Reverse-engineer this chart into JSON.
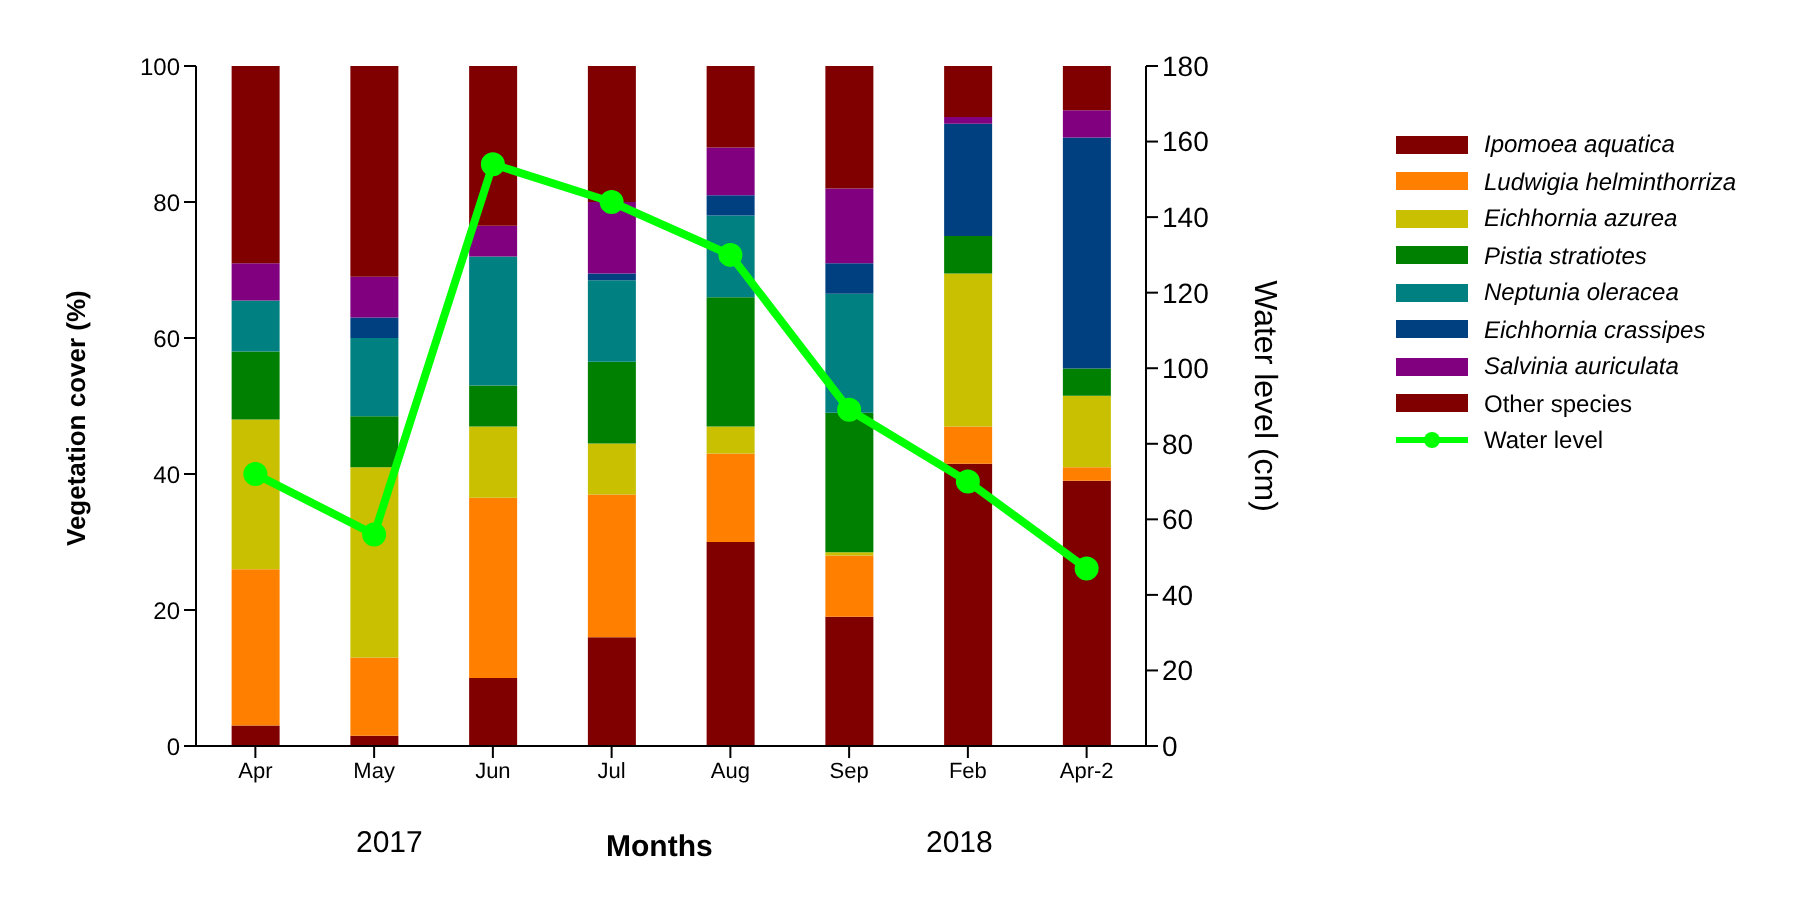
{
  "chart_data": {
    "type": "bar",
    "stacked": true,
    "xlabel": "Months",
    "ylabel": "Vegetation cover (%)",
    "y2label": "Water level (cm)",
    "categories": [
      "Apr",
      "May",
      "Jun",
      "Jul",
      "Aug",
      "Sep",
      "Feb",
      "Apr-2"
    ],
    "series": [
      {
        "name": "Ipomoea aquatica",
        "color": "#800000",
        "values": [
          3,
          1.5,
          10,
          16,
          30,
          19,
          41.5,
          39
        ]
      },
      {
        "name": "Ludwigia helminthorriza",
        "color": "#ff8000",
        "values": [
          23,
          11.5,
          26.5,
          21,
          13,
          9,
          5.5,
          2
        ]
      },
      {
        "name": "Eichhornia azurea",
        "color": "#c8c000",
        "values": [
          22,
          28,
          10.5,
          7.5,
          4,
          0.5,
          22.5,
          10.5
        ]
      },
      {
        "name": "Pistia stratiotes",
        "color": "#008000",
        "values": [
          10,
          7.5,
          6,
          12,
          19,
          20.5,
          5.5,
          4
        ]
      },
      {
        "name": "Neptunia oleracea",
        "color": "#008080",
        "values": [
          7.5,
          11.5,
          19,
          12,
          12,
          17.5,
          0,
          0
        ]
      },
      {
        "name": "Eichhornia crassipes",
        "color": "#004080",
        "values": [
          0,
          3,
          0,
          1,
          3,
          4.5,
          16.5,
          34
        ]
      },
      {
        "name": "Salvinia auriculata",
        "color": "#800080",
        "values": [
          5.5,
          6,
          4.5,
          10.5,
          7,
          11,
          1,
          4
        ]
      },
      {
        "name": "Other species",
        "color": "#800000",
        "values": [
          29,
          31,
          23.5,
          20,
          12,
          18,
          7.5,
          6.5
        ]
      },
      {
        "name": "Water level",
        "type": "line",
        "axis": "y2",
        "color": "#00ff00",
        "values": [
          72,
          56,
          154,
          144,
          130,
          89,
          70,
          47
        ]
      }
    ],
    "ylim": [
      0,
      100
    ],
    "yticks": [
      0,
      20,
      40,
      60,
      80,
      100
    ],
    "y2lim": [
      0,
      180
    ],
    "y2ticks": [
      0,
      20,
      40,
      60,
      80,
      100,
      120,
      140,
      160,
      180
    ],
    "marker": "circle",
    "legend": "right",
    "annotations": [
      "2017",
      "2018"
    ]
  }
}
